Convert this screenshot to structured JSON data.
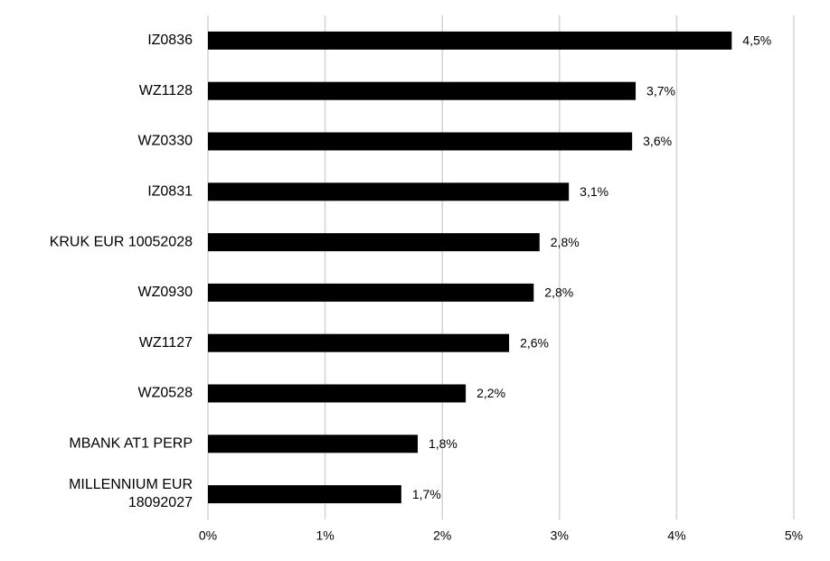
{
  "chart_data": {
    "type": "barh",
    "categories": [
      "IZ0836",
      "WZ1128",
      "WZ0330",
      "IZ0831",
      "KRUK EUR 10052028",
      "WZ0930",
      "WZ1127",
      "WZ0528",
      "MBANK AT1 PERP",
      "MILLENNIUM EUR 18092027"
    ],
    "values": [
      4.47,
      3.65,
      3.62,
      3.08,
      2.83,
      2.78,
      2.57,
      2.2,
      1.79,
      1.65
    ],
    "value_labels": [
      "4,5%",
      "3,7%",
      "3,6%",
      "3,1%",
      "2,8%",
      "2,8%",
      "2,6%",
      "2,2%",
      "1,8%",
      "1,7%"
    ],
    "color": "#000000",
    "xlim": [
      0,
      5
    ],
    "xticks": [
      {
        "value": 0,
        "label": "0%"
      },
      {
        "value": 1,
        "label": "1%"
      },
      {
        "value": 2,
        "label": "2%"
      },
      {
        "value": 3,
        "label": "3%"
      },
      {
        "value": 4,
        "label": "4%"
      },
      {
        "value": 5,
        "label": "5%"
      }
    ],
    "grid": true
  }
}
